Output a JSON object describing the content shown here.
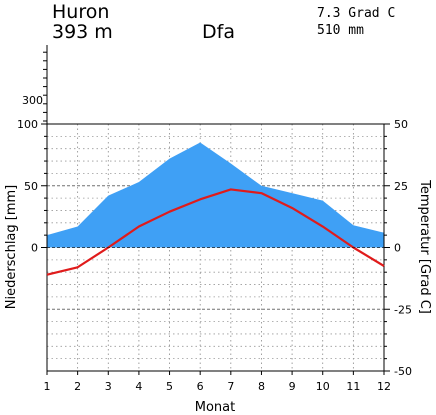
{
  "header": {
    "station": "Huron",
    "elevation": "393 m",
    "climate_class": "Dfa",
    "mean_temp": "7.3 Grad C",
    "annual_precip": "510 mm"
  },
  "chart_data": {
    "type": "line",
    "title": "Huron",
    "xlabel": "Monat",
    "ylabel_left": "Niederschlag [mm]",
    "ylabel_right": "Temperatur [Grad C]",
    "x": [
      1,
      2,
      3,
      4,
      5,
      6,
      7,
      8,
      9,
      10,
      11,
      12
    ],
    "x_tick_labels": [
      "1",
      "2",
      "3",
      "4",
      "5",
      "6",
      "7",
      "8",
      "9",
      "10",
      "11",
      "12"
    ],
    "left_axis": {
      "ylim": [
        0,
        100
      ],
      "ticks": [
        "0",
        "50",
        "100"
      ],
      "extra_ticks": [
        "300"
      ]
    },
    "right_axis": {
      "ylim": [
        -50,
        50
      ],
      "ticks": [
        "-50",
        "-25",
        "0",
        "25",
        "50"
      ]
    },
    "grid": true,
    "series": [
      {
        "kind": "area",
        "axis": "left",
        "color": "#3fa0f5",
        "values": [
          10,
          17,
          42,
          53,
          72,
          85,
          68,
          50,
          44,
          38,
          18,
          12
        ]
      },
      {
        "kind": "line",
        "axis": "right",
        "color": "#e01b1b",
        "values": [
          -11,
          -8,
          0,
          8.5,
          14.5,
          19.5,
          23.5,
          22,
          16,
          8.5,
          0,
          -7.5
        ]
      }
    ]
  }
}
